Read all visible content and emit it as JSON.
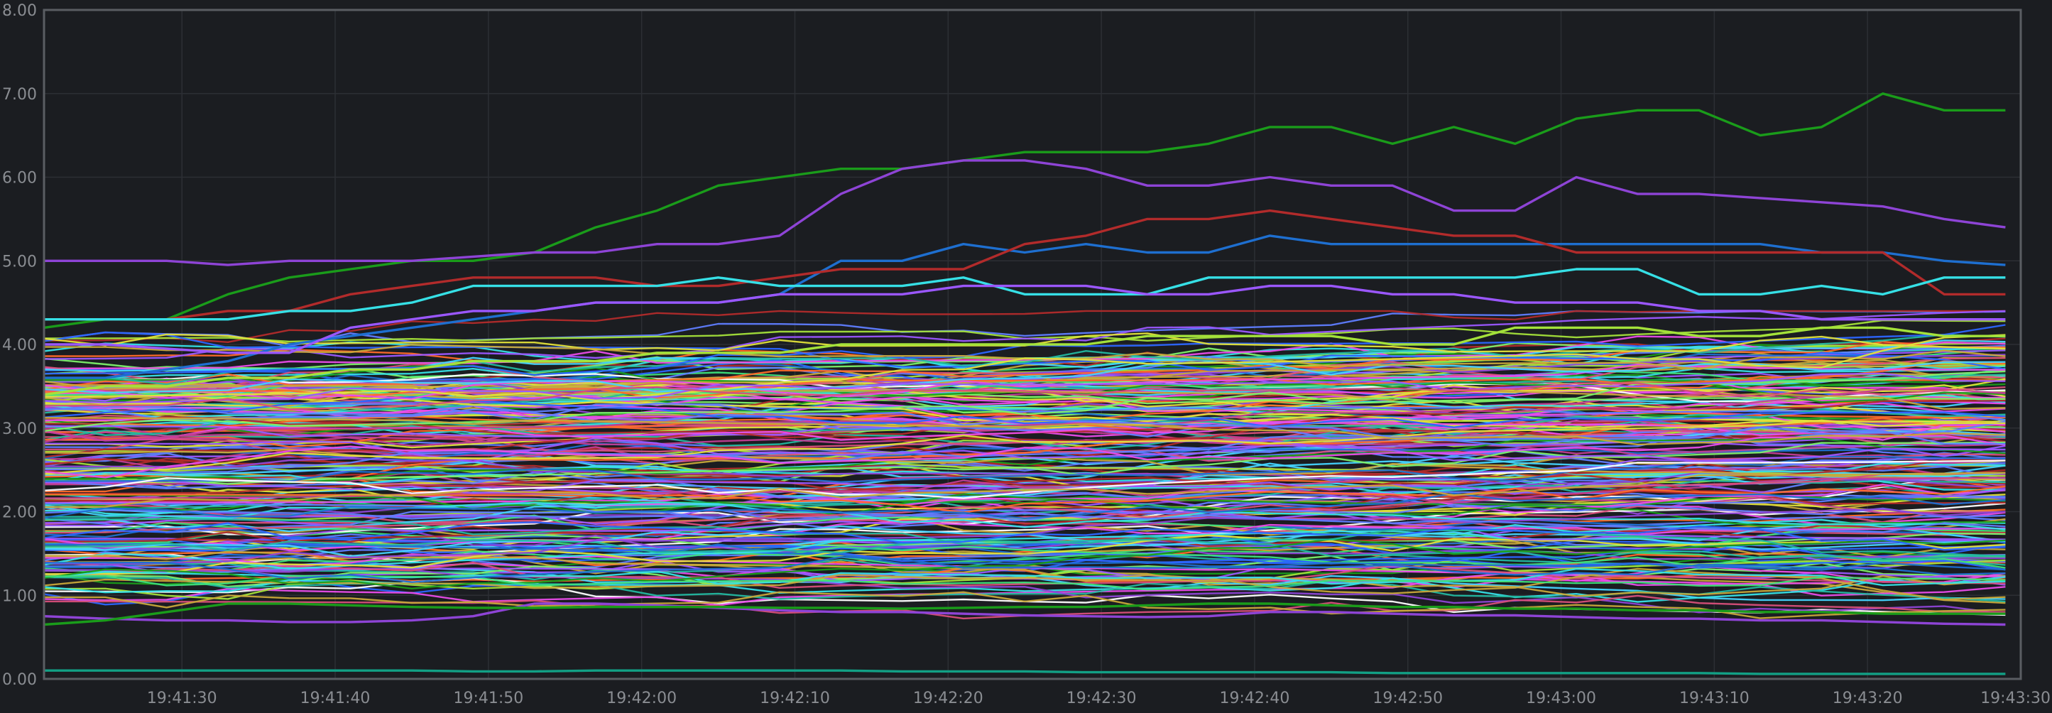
{
  "chart_data": {
    "type": "line",
    "title": "",
    "xlabel": "",
    "ylabel": "",
    "grid": true,
    "legend": "none",
    "ylim": [
      0,
      8
    ],
    "x_range": [
      "19:41:21",
      "19:43:30"
    ],
    "y_ticks": [
      "0.00",
      "1.00",
      "2.00",
      "3.00",
      "4.00",
      "5.00",
      "6.00",
      "7.00",
      "8.00"
    ],
    "x_ticks": [
      "19:41:30",
      "19:41:40",
      "19:41:50",
      "19:42:00",
      "19:42:10",
      "19:42:20",
      "19:42:30",
      "19:42:40",
      "19:42:50",
      "19:43:00",
      "19:43:10",
      "19:43:20",
      "19:43:30"
    ],
    "background_color": "#1b1d21",
    "grid_color": "#2c2f34",
    "frame_color": "#5a5d62",
    "tick_color": "#8a8d92",
    "palette": [
      "#1a9c1a",
      "#8e44d6",
      "#1e6fd0",
      "#b22b2b",
      "#36e0e6",
      "#2c66ff",
      "#e2e23a",
      "#9b57ff",
      "#3ee07a",
      "#c23d94",
      "#23b8a0",
      "#ff6a2a",
      "#ffffff",
      "#a4e23a",
      "#5f7dff",
      "#d84f7a",
      "#45d4ff",
      "#c8a83a",
      "#7cf06a",
      "#e94ce9"
    ],
    "x": [
      "19:41:21",
      "19:41:25",
      "19:41:29",
      "19:41:33",
      "19:41:37",
      "19:41:41",
      "19:41:45",
      "19:41:49",
      "19:41:53",
      "19:41:57",
      "19:42:01",
      "19:42:05",
      "19:42:09",
      "19:42:13",
      "19:42:17",
      "19:42:21",
      "19:42:25",
      "19:42:29",
      "19:42:33",
      "19:42:37",
      "19:42:41",
      "19:42:45",
      "19:42:49",
      "19:42:53",
      "19:42:57",
      "19:43:01",
      "19:43:05",
      "19:43:09",
      "19:43:13",
      "19:43:17",
      "19:43:21",
      "19:43:25",
      "19:43:29"
    ],
    "series": [
      {
        "color": "#1a9c1a",
        "values": [
          4.2,
          4.3,
          4.3,
          4.6,
          4.8,
          4.9,
          5.0,
          5.0,
          5.1,
          5.4,
          5.6,
          5.9,
          6.0,
          6.1,
          6.1,
          6.2,
          6.3,
          6.3,
          6.3,
          6.4,
          6.6,
          6.6,
          6.4,
          6.6,
          6.4,
          6.7,
          6.8,
          6.8,
          6.5,
          6.6,
          7.0,
          6.8,
          6.8
        ]
      },
      {
        "color": "#8e44d6",
        "values": [
          5.0,
          5.0,
          5.0,
          4.95,
          5.0,
          5.0,
          5.0,
          5.05,
          5.1,
          5.1,
          5.2,
          5.2,
          5.3,
          5.8,
          6.1,
          6.2,
          6.2,
          6.1,
          5.9,
          5.9,
          6.0,
          5.9,
          5.9,
          5.6,
          5.6,
          6.0,
          5.8,
          5.8,
          5.75,
          5.7,
          5.65,
          5.5,
          5.4
        ]
      },
      {
        "color": "#1e6fd0",
        "values": [
          3.6,
          3.6,
          3.7,
          3.8,
          4.0,
          4.1,
          4.2,
          4.3,
          4.4,
          4.5,
          4.5,
          4.5,
          4.6,
          5.0,
          5.0,
          5.2,
          5.1,
          5.2,
          5.1,
          5.1,
          5.3,
          5.2,
          5.2,
          5.2,
          5.2,
          5.2,
          5.2,
          5.2,
          5.2,
          5.1,
          5.1,
          5.0,
          4.95
        ]
      },
      {
        "color": "#b22b2b",
        "values": [
          4.3,
          4.3,
          4.3,
          4.4,
          4.4,
          4.6,
          4.7,
          4.8,
          4.8,
          4.8,
          4.7,
          4.7,
          4.8,
          4.9,
          4.9,
          4.9,
          5.2,
          5.3,
          5.5,
          5.5,
          5.6,
          5.5,
          5.4,
          5.3,
          5.3,
          5.1,
          5.1,
          5.1,
          5.1,
          5.1,
          5.1,
          4.6,
          4.6
        ]
      },
      {
        "color": "#36e0e6",
        "values": [
          4.3,
          4.3,
          4.3,
          4.3,
          4.4,
          4.4,
          4.5,
          4.7,
          4.7,
          4.7,
          4.7,
          4.8,
          4.7,
          4.7,
          4.7,
          4.8,
          4.6,
          4.6,
          4.6,
          4.8,
          4.8,
          4.8,
          4.8,
          4.8,
          4.8,
          4.9,
          4.9,
          4.6,
          4.6,
          4.7,
          4.6,
          4.8,
          4.8
        ]
      },
      {
        "color": "#12a085",
        "values": [
          0.1,
          0.1,
          0.1,
          0.1,
          0.1,
          0.1,
          0.1,
          0.09,
          0.09,
          0.1,
          0.1,
          0.1,
          0.1,
          0.1,
          0.09,
          0.09,
          0.09,
          0.08,
          0.08,
          0.08,
          0.08,
          0.08,
          0.07,
          0.07,
          0.07,
          0.07,
          0.07,
          0.07,
          0.06,
          0.06,
          0.06,
          0.06,
          0.06
        ]
      },
      {
        "color": "#8e44d6",
        "values": [
          0.75,
          0.72,
          0.7,
          0.7,
          0.68,
          0.68,
          0.7,
          0.75,
          0.9,
          0.9,
          0.88,
          0.85,
          0.82,
          0.8,
          0.8,
          0.78,
          0.76,
          0.75,
          0.74,
          0.75,
          0.8,
          0.8,
          0.78,
          0.76,
          0.76,
          0.74,
          0.72,
          0.72,
          0.7,
          0.7,
          0.68,
          0.66,
          0.65
        ]
      },
      {
        "color": "#1a9c1a",
        "values": [
          0.65,
          0.7,
          0.8,
          0.9,
          0.9,
          0.88,
          0.86,
          0.85,
          0.85,
          0.86,
          0.86,
          0.86,
          0.85,
          0.85,
          0.84,
          0.85,
          0.86,
          0.86,
          0.88,
          0.9,
          0.9,
          0.88,
          0.86,
          0.86,
          0.84,
          0.84,
          0.82,
          0.82,
          0.8,
          0.8,
          0.78,
          0.78,
          0.78
        ]
      },
      {
        "color": "#9b57ff",
        "values": [
          4.0,
          4.0,
          3.95,
          3.9,
          3.9,
          4.2,
          4.3,
          4.4,
          4.4,
          4.5,
          4.5,
          4.5,
          4.6,
          4.6,
          4.6,
          4.7,
          4.7,
          4.7,
          4.6,
          4.6,
          4.7,
          4.7,
          4.6,
          4.6,
          4.5,
          4.5,
          4.5,
          4.4,
          4.4,
          4.3,
          4.3,
          4.3,
          4.3
        ]
      },
      {
        "color": "#a4e23a",
        "values": [
          3.4,
          3.5,
          3.5,
          3.6,
          3.6,
          3.7,
          3.7,
          3.8,
          3.8,
          3.8,
          3.9,
          3.9,
          3.9,
          4.0,
          4.0,
          4.0,
          4.0,
          4.0,
          4.1,
          4.1,
          4.1,
          4.1,
          4.0,
          4.0,
          4.2,
          4.2,
          4.2,
          4.1,
          4.1,
          4.2,
          4.2,
          4.1,
          4.1
        ]
      }
    ]
  }
}
